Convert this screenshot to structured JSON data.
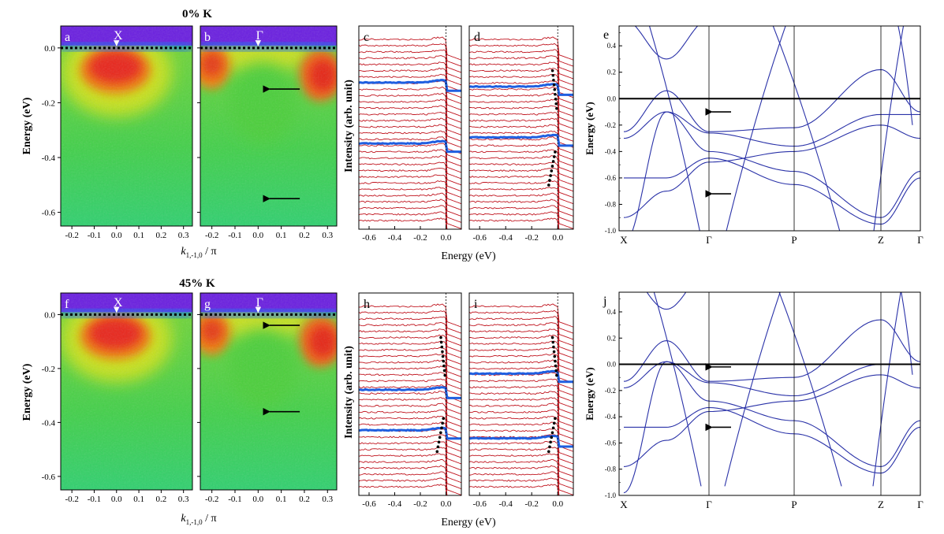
{
  "figure": {
    "rows": [
      {
        "title": "0% K",
        "arpes_panels": [
          {
            "label": "a",
            "point": "X",
            "arrows_energy_eV": [],
            "cmap_center_k": 0.0,
            "cmap_type": "x"
          },
          {
            "label": "b",
            "point": "Γ",
            "arrows_energy_eV": [
              -0.15,
              -0.55
            ],
            "cmap_type": "gamma"
          }
        ],
        "edc_panels": [
          {
            "label": "c",
            "highlight_offsets": [
              0.28,
              0.58
            ],
            "dots": false
          },
          {
            "label": "d",
            "highlight_offsets": [
              0.3,
              0.55
            ],
            "dots": true
          }
        ],
        "band_panel": {
          "label": "e",
          "ylim": [
            -1.0,
            0.55
          ],
          "arrows_energy_eV": [
            -0.1,
            -0.72
          ],
          "yticks": [
            "0.4",
            "0.2",
            "0.0",
            "-0.2",
            "-0.4",
            "-0.6",
            "-0.8",
            "-1.0"
          ]
        }
      },
      {
        "title": "45% K",
        "arpes_panels": [
          {
            "label": "f",
            "point": "X",
            "arrows_energy_eV": [],
            "cmap_type": "x"
          },
          {
            "label": "g",
            "point": "Γ",
            "arrows_energy_eV": [
              -0.04,
              -0.36
            ],
            "cmap_type": "gamma"
          }
        ],
        "edc_panels": [
          {
            "label": "h",
            "highlight_offsets": [
              0.48,
              0.68
            ],
            "dots": true
          },
          {
            "label": "i",
            "highlight_offsets": [
              0.4,
              0.72
            ],
            "dots": true
          }
        ],
        "band_panel": {
          "label": "j",
          "ylim": [
            -1.0,
            0.55
          ],
          "arrows_energy_eV": [
            -0.02,
            -0.48
          ],
          "yticks": [
            "0.4",
            "0.2",
            "0.0",
            "-0.2",
            "-0.4",
            "-0.6",
            "-0.8",
            "-1.0"
          ]
        }
      }
    ],
    "arpes_axes": {
      "ylabel": "Energy (eV)",
      "xlabel_main": "k",
      "xlabel_sub": "1,-1,0",
      "xlabel_tail": " / π",
      "xticks": [
        "-0.2",
        "-0.1",
        "0.0",
        "0.1",
        "0.2",
        "0.3"
      ],
      "yticks": [
        "0.0",
        "-0.2",
        "-0.4",
        "-0.6"
      ],
      "ylim": [
        -0.65,
        0.08
      ]
    },
    "edc_axes": {
      "ylabel": "Intensity (arb. unit)",
      "xlabel": "Energy (eV)",
      "xticks_left": [
        "-0.6",
        "-0.4",
        "-0.2",
        "0.0"
      ],
      "xticks_right": [
        "-0.6",
        "-0.4",
        "-0.2",
        "0.0"
      ]
    },
    "band_axes": {
      "ylabel": "Energy (eV)",
      "kpoints": [
        "X",
        "Γ",
        "P",
        "Z",
        "Γ"
      ]
    },
    "colors": {
      "edc_curve": "#c0141e",
      "edc_highlight": "#1f5fe0",
      "band_line": "#2a32a8",
      "arrow": "#000000",
      "marker_arrow": "#ffffff"
    }
  }
}
